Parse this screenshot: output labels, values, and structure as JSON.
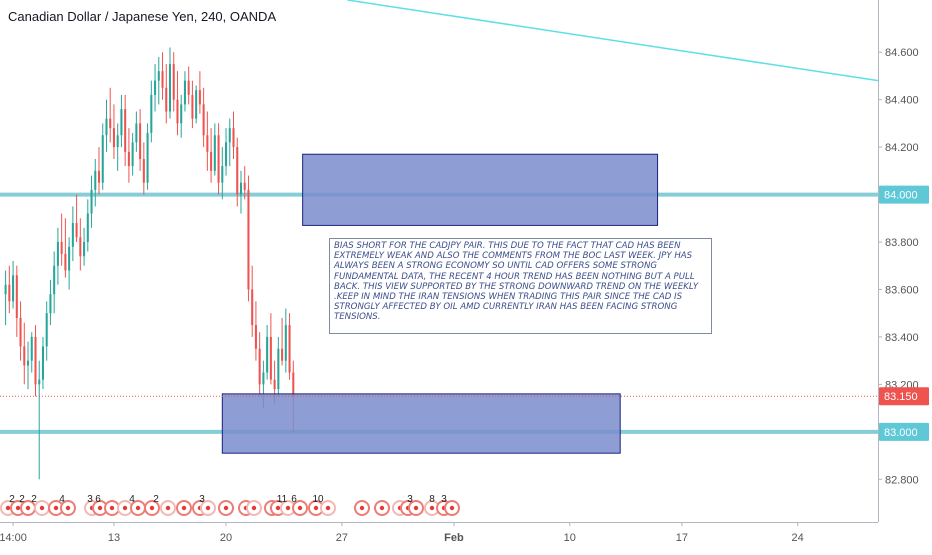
{
  "title": "Canadian Dollar / Japanese Yen, 240, OANDA",
  "annotation": "BIAS SHORT FOR THE CADJPY PAIR. THIS DUE TO THE FACT THAT CAD HAS BEEN EXTREMELY WEAK AND ALSO THE COMMENTS FROM THE BOC LAST WEEK. JPY HAS ALWAYS BEEN A STRONG ECONOMY SO UNTIL CAD OFFERS SOME STRONG FUNDAMENTAL DATA, THE RECENT 4 HOUR TREND HAS BEEN NOTHING BUT A PULL BACK. THIS VIEW SUPPORTED BY THE STRONG DOWNWARD TREND ON THE WEEKLY .KEEP IN MIND THE IRAN TENSIONS WHEN TRADING THIS PAIR SINCE THE CAD IS STRONGLY AFFECTED BY OIL AMD CURRENTLY IRAN HAS BEEN FACING STRONG TENSIONS.",
  "colors": {
    "up": "#26a69a",
    "down": "#ef5350",
    "level_line": "#80cbd6",
    "trendline": "#5ce0e6",
    "zone_fill": "#7a8ccc",
    "zone_border": "#1a237e",
    "price_badge": "#ef5350",
    "level_badge": "#5ec8d6",
    "axis_text": "#555555"
  },
  "chart_data": {
    "type": "candlestick",
    "symbol": "Canadian Dollar / Japanese Yen",
    "interval": "240",
    "source": "OANDA",
    "y_range": [
      82.62,
      84.82
    ],
    "y_ticks": [
      {
        "value": 84.6,
        "label": "84.600"
      },
      {
        "value": 84.4,
        "label": "84.400"
      },
      {
        "value": 84.2,
        "label": "84.200"
      },
      {
        "value": 84.0,
        "label": "84.000"
      },
      {
        "value": 83.8,
        "label": "83.800"
      },
      {
        "value": 83.6,
        "label": "83.600"
      },
      {
        "value": 83.4,
        "label": "83.400"
      },
      {
        "value": 83.2,
        "label": "83.200"
      },
      {
        "value": 83.0,
        "label": "83.000"
      },
      {
        "value": 82.8,
        "label": "82.800"
      }
    ],
    "x_ticks": [
      {
        "bar": 2,
        "label": "14:00"
      },
      {
        "bar": 29,
        "label": "13"
      },
      {
        "bar": 59,
        "label": "20"
      },
      {
        "bar": 90,
        "label": "27"
      },
      {
        "bar": 120,
        "label": "Feb"
      },
      {
        "bar": 151,
        "label": "10"
      },
      {
        "bar": 181,
        "label": "17"
      },
      {
        "bar": 212,
        "label": "24"
      }
    ],
    "x_bar_range": [
      -1.5,
      233.5
    ],
    "last_price": {
      "value": 83.15,
      "label": "83.150"
    },
    "horizontal_levels": [
      {
        "value": 84.0,
        "label": "84.000"
      },
      {
        "value": 83.0,
        "label": "83.000"
      }
    ],
    "zones": [
      {
        "bar_start": 79.5,
        "bar_end": 174.5,
        "top": 84.17,
        "bottom": 83.87
      },
      {
        "bar_start": 58,
        "bar_end": 164.5,
        "top": 83.16,
        "bottom": 82.91
      }
    ],
    "trendline": {
      "bar_start": 91.5,
      "bar_end": 233.5,
      "value_start": 84.82,
      "value_end": 84.48
    },
    "event_markers": [
      "2",
      "2",
      "2",
      "4",
      "3",
      "6",
      "4",
      "2",
      "3",
      "11",
      "6",
      "10",
      "3",
      "8",
      "3"
    ],
    "candles": [
      [
        83.58,
        83.68,
        83.45,
        83.62
      ],
      [
        83.62,
        83.7,
        83.5,
        83.55
      ],
      [
        83.55,
        83.72,
        83.52,
        83.66
      ],
      [
        83.66,
        83.7,
        83.4,
        83.48
      ],
      [
        83.48,
        83.55,
        83.3,
        83.36
      ],
      [
        83.36,
        83.46,
        83.2,
        83.28
      ],
      [
        83.28,
        83.38,
        83.18,
        83.3
      ],
      [
        83.3,
        83.42,
        83.25,
        83.4
      ],
      [
        83.4,
        83.45,
        83.15,
        83.2
      ],
      [
        83.2,
        83.3,
        82.8,
        83.22
      ],
      [
        83.22,
        83.4,
        83.18,
        83.36
      ],
      [
        83.36,
        83.55,
        83.3,
        83.5
      ],
      [
        83.5,
        83.64,
        83.45,
        83.58
      ],
      [
        83.58,
        83.76,
        83.5,
        83.7
      ],
      [
        83.7,
        83.86,
        83.62,
        83.8
      ],
      [
        83.8,
        83.92,
        83.7,
        83.75
      ],
      [
        83.75,
        83.9,
        83.65,
        83.68
      ],
      [
        83.68,
        83.82,
        83.6,
        83.78
      ],
      [
        83.78,
        83.95,
        83.72,
        83.88
      ],
      [
        83.88,
        84.0,
        83.8,
        83.82
      ],
      [
        83.82,
        83.9,
        83.68,
        83.74
      ],
      [
        83.74,
        83.86,
        83.7,
        83.8
      ],
      [
        83.8,
        83.98,
        83.76,
        83.92
      ],
      [
        83.92,
        84.08,
        83.86,
        84.02
      ],
      [
        84.02,
        84.15,
        83.95,
        84.1
      ],
      [
        84.1,
        84.2,
        84.0,
        84.05
      ],
      [
        84.05,
        84.3,
        84.02,
        84.25
      ],
      [
        84.25,
        84.4,
        84.18,
        84.32
      ],
      [
        84.32,
        84.45,
        84.22,
        84.28
      ],
      [
        84.28,
        84.38,
        84.15,
        84.2
      ],
      [
        84.2,
        84.3,
        84.1,
        84.25
      ],
      [
        84.25,
        84.42,
        84.2,
        84.36
      ],
      [
        84.36,
        84.42,
        84.12,
        84.18
      ],
      [
        84.18,
        84.28,
        84.05,
        84.12
      ],
      [
        84.12,
        84.26,
        84.08,
        84.22
      ],
      [
        84.22,
        84.35,
        84.18,
        84.3
      ],
      [
        84.3,
        84.36,
        84.1,
        84.15
      ],
      [
        84.15,
        84.22,
        84.0,
        84.05
      ],
      [
        84.05,
        84.3,
        84.02,
        84.26
      ],
      [
        84.26,
        84.48,
        84.22,
        84.42
      ],
      [
        84.42,
        84.55,
        84.35,
        84.48
      ],
      [
        84.48,
        84.58,
        84.38,
        84.52
      ],
      [
        84.52,
        84.6,
        84.4,
        84.45
      ],
      [
        84.45,
        84.55,
        84.3,
        84.35
      ],
      [
        84.35,
        84.62,
        84.32,
        84.55
      ],
      [
        84.55,
        84.6,
        84.35,
        84.4
      ],
      [
        84.4,
        84.52,
        84.25,
        84.3
      ],
      [
        84.3,
        84.42,
        84.24,
        84.38
      ],
      [
        84.38,
        84.52,
        84.35,
        84.48
      ],
      [
        84.48,
        84.54,
        84.38,
        84.42
      ],
      [
        84.42,
        84.48,
        84.28,
        84.32
      ],
      [
        84.32,
        84.46,
        84.3,
        84.44
      ],
      [
        84.44,
        84.52,
        84.34,
        84.38
      ],
      [
        84.38,
        84.45,
        84.2,
        84.25
      ],
      [
        84.25,
        84.35,
        84.1,
        84.18
      ],
      [
        84.18,
        84.28,
        84.05,
        84.1
      ],
      [
        84.1,
        84.3,
        84.08,
        84.25
      ],
      [
        84.25,
        84.3,
        84.0,
        84.05
      ],
      [
        84.05,
        84.2,
        83.98,
        84.12
      ],
      [
        84.12,
        84.28,
        84.08,
        84.22
      ],
      [
        84.22,
        84.32,
        84.12,
        84.28
      ],
      [
        84.28,
        84.35,
        84.15,
        84.2
      ],
      [
        84.2,
        84.24,
        83.95,
        84.0
      ],
      [
        84.0,
        84.1,
        83.92,
        84.05
      ],
      [
        84.05,
        84.12,
        83.98,
        84.02
      ],
      [
        84.02,
        84.08,
        83.55,
        83.6
      ],
      [
        83.6,
        83.7,
        83.4,
        83.45
      ],
      [
        83.45,
        83.55,
        83.3,
        83.35
      ],
      [
        83.35,
        83.42,
        83.15,
        83.2
      ],
      [
        83.2,
        83.3,
        83.1,
        83.25
      ],
      [
        83.25,
        83.45,
        83.22,
        83.4
      ],
      [
        83.4,
        83.5,
        83.2,
        83.22
      ],
      [
        83.22,
        83.3,
        83.12,
        83.18
      ],
      [
        83.18,
        83.4,
        83.15,
        83.35
      ],
      [
        83.35,
        83.48,
        83.28,
        83.3
      ],
      [
        83.3,
        83.52,
        83.25,
        83.45
      ],
      [
        83.45,
        83.5,
        83.22,
        83.25
      ],
      [
        83.25,
        83.3,
        83.0,
        83.15
      ]
    ]
  },
  "price_scale": {
    "last_price_label": "83.150",
    "level_labels": [
      "84.000",
      "83.000"
    ]
  }
}
